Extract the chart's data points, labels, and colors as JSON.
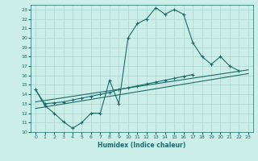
{
  "xlabel": "Humidex (Indice chaleur)",
  "bg_color": "#cceee8",
  "line_color": "#1a6b6b",
  "grid_color": "#aad4ce",
  "xlim": [
    -0.5,
    23.5
  ],
  "ylim": [
    10,
    23.5
  ],
  "yticks": [
    10,
    11,
    12,
    13,
    14,
    15,
    16,
    17,
    18,
    19,
    20,
    21,
    22,
    23
  ],
  "xticks": [
    0,
    1,
    2,
    3,
    4,
    5,
    6,
    7,
    8,
    9,
    10,
    11,
    12,
    13,
    14,
    15,
    16,
    17,
    18,
    19,
    20,
    21,
    22,
    23
  ],
  "line1_x": [
    0,
    1,
    2,
    3,
    4,
    5,
    6,
    7,
    8,
    9,
    10,
    11,
    12,
    13,
    14,
    15,
    16,
    17,
    18,
    19,
    20,
    21,
    22
  ],
  "line1_y": [
    14.5,
    12.8,
    12.0,
    11.1,
    10.4,
    11.0,
    12.0,
    12.0,
    15.5,
    13.0,
    20.0,
    21.5,
    22.0,
    23.2,
    22.5,
    23.0,
    22.5,
    19.5,
    18.0,
    17.2,
    18.0,
    17.0,
    16.5
  ],
  "line2_x": [
    0,
    1,
    2,
    3,
    4,
    5,
    6,
    7,
    8,
    9,
    10,
    11,
    12,
    13,
    14,
    15,
    16,
    17
  ],
  "line2_y": [
    14.5,
    13.0,
    13.1,
    13.2,
    13.4,
    13.6,
    13.8,
    14.0,
    14.2,
    14.5,
    14.7,
    14.9,
    15.1,
    15.3,
    15.5,
    15.7,
    15.9,
    16.1
  ],
  "line3_x": [
    0,
    23
  ],
  "line3_y": [
    12.5,
    16.2
  ],
  "line4_x": [
    0,
    23
  ],
  "line4_y": [
    13.2,
    16.6
  ]
}
